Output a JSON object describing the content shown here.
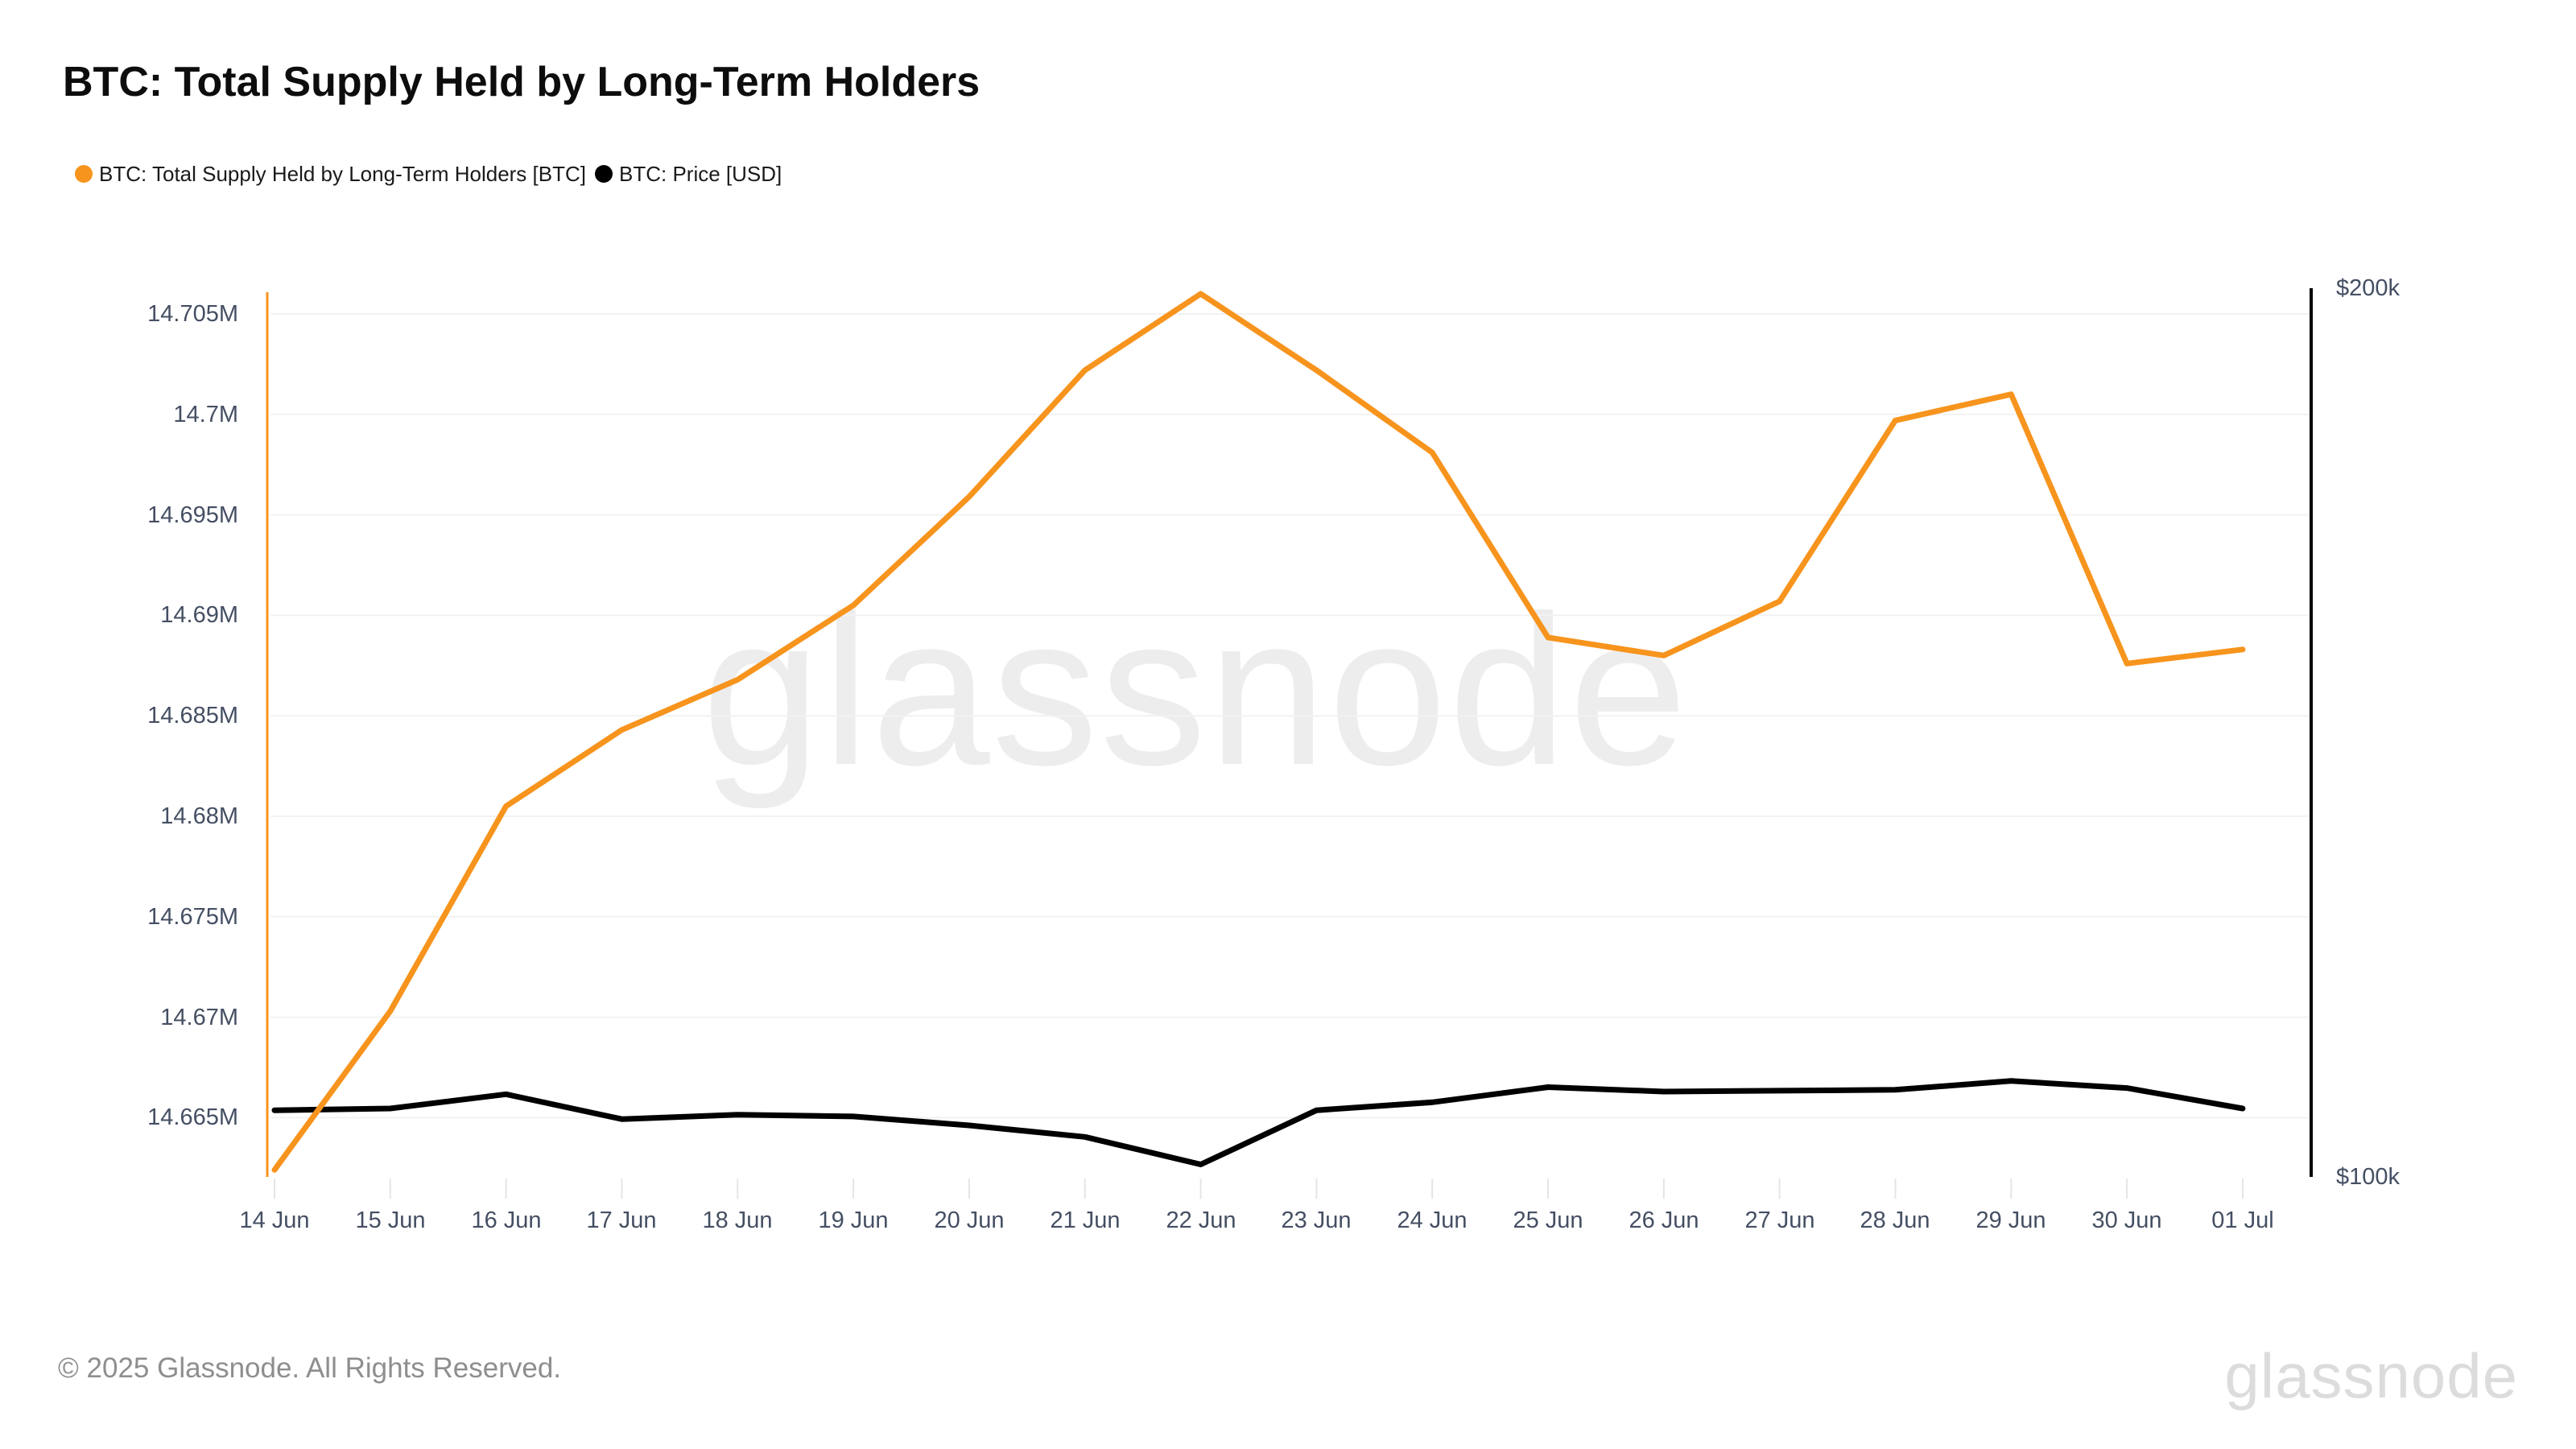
{
  "header": {
    "title": "BTC: Total Supply Held by Long-Term Holders"
  },
  "legend": [
    {
      "label": "BTC: Total Supply Held by Long-Term Holders [BTC]",
      "color": "#f7941d",
      "marker": "dot-icon"
    },
    {
      "label": "BTC: Price [USD]",
      "color": "#000000",
      "marker": "dot-icon"
    }
  ],
  "watermark": "glassnode",
  "footer": {
    "copyright": "© 2025 Glassnode. All Rights Reserved.",
    "brand": "glassnode"
  },
  "colors": {
    "supply_line": "#f7941d",
    "price_line": "#000000",
    "gridline": "#f2f2f4",
    "tick": "#e5e5e8",
    "axis_text": "#454f63"
  },
  "chart_data": {
    "type": "line",
    "title": "BTC: Total Supply Held by Long-Term Holders",
    "grid": "horizontal",
    "legend_position": "top-left",
    "categories": [
      "14 Jun",
      "15 Jun",
      "16 Jun",
      "17 Jun",
      "18 Jun",
      "19 Jun",
      "20 Jun",
      "21 Jun",
      "22 Jun",
      "23 Jun",
      "24 Jun",
      "25 Jun",
      "26 Jun",
      "27 Jun",
      "28 Jun",
      "29 Jun",
      "30 Jun",
      "01 Jul"
    ],
    "series": [
      {
        "name": "BTC: Total Supply Held by Long-Term Holders [BTC]",
        "axis": "left",
        "unit": "M BTC",
        "color": "#f7941d",
        "values": [
          14.6624,
          14.6703,
          14.6805,
          14.6843,
          14.6868,
          14.6905,
          14.6959,
          14.7022,
          14.706,
          14.7022,
          14.6981,
          14.6889,
          14.688,
          14.6907,
          14.6997,
          14.701,
          14.6876,
          14.6883
        ]
      },
      {
        "name": "BTC: Price [USD]",
        "axis": "right",
        "unit": "k USD",
        "color": "#000000",
        "values": [
          107.5,
          107.7,
          109.3,
          106.5,
          107.0,
          106.8,
          105.8,
          104.5,
          101.4,
          107.5,
          108.4,
          110.1,
          109.6,
          109.7,
          109.8,
          110.8,
          110.0,
          107.7
        ]
      }
    ],
    "left_axis": {
      "unit": "M BTC",
      "range": [
        14.662,
        14.7061
      ],
      "ticks": [
        {
          "label": "14.705M",
          "value": 14.705
        },
        {
          "label": "14.7M",
          "value": 14.7
        },
        {
          "label": "14.695M",
          "value": 14.695
        },
        {
          "label": "14.69M",
          "value": 14.69
        },
        {
          "label": "14.685M",
          "value": 14.685
        },
        {
          "label": "14.68M",
          "value": 14.68
        },
        {
          "label": "14.675M",
          "value": 14.675
        },
        {
          "label": "14.67M",
          "value": 14.67
        },
        {
          "label": "14.665M",
          "value": 14.665
        }
      ]
    },
    "right_axis": {
      "unit": "k USD",
      "range": [
        100,
        200
      ],
      "ticks": [
        {
          "label": "$200k",
          "value": 200
        },
        {
          "label": "$100k",
          "value": 100
        }
      ]
    }
  }
}
